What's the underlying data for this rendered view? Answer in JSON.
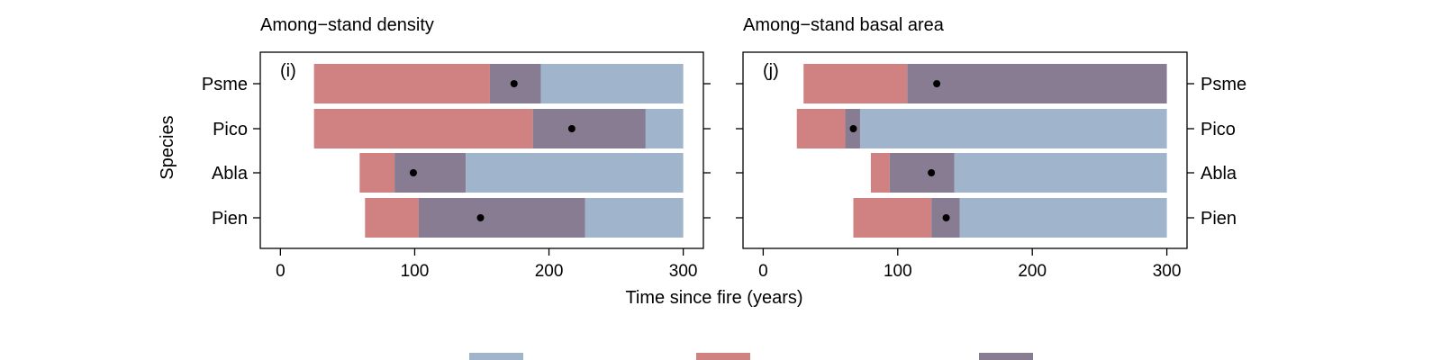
{
  "figure": {
    "shared_xlabel": "Time since fire (years)",
    "ylabel": "Species",
    "colors": {
      "blue": "#a0b4cc",
      "red": "#d08282",
      "purple": "#887c92",
      "dot": "#000000",
      "axis": "#000000"
    }
  },
  "chart_data": [
    {
      "type": "bar",
      "subtype": "horizontal-stacked-range",
      "title": "Among−stand density",
      "panel_label": "(i)",
      "xlabel": "Time since fire (years)",
      "ylabel": "Species",
      "categories": [
        "Psme",
        "Pico",
        "Abla",
        "Pien"
      ],
      "xlim": [
        -15,
        315
      ],
      "xticks": [
        0,
        100,
        200,
        300
      ],
      "ytick_side": "left",
      "grid": false,
      "segments": [
        {
          "category": "Psme",
          "red": [
            25,
            156
          ],
          "purple": [
            156,
            194
          ],
          "blue": [
            194,
            300
          ],
          "dot": 174
        },
        {
          "category": "Pico",
          "red": [
            25,
            188
          ],
          "purple": [
            188,
            272
          ],
          "blue": [
            272,
            300
          ],
          "dot": 217
        },
        {
          "category": "Abla",
          "red": [
            59,
            85
          ],
          "purple": [
            85,
            138
          ],
          "blue": [
            138,
            300
          ],
          "dot": 99
        },
        {
          "category": "Pien",
          "red": [
            63,
            103
          ],
          "purple": [
            103,
            227
          ],
          "blue": [
            227,
            300
          ],
          "dot": 149
        }
      ]
    },
    {
      "type": "bar",
      "subtype": "horizontal-stacked-range",
      "title": "Among−stand basal area",
      "panel_label": "(j)",
      "xlabel": "Time since fire (years)",
      "ylabel": "",
      "categories": [
        "Psme",
        "Pico",
        "Abla",
        "Pien"
      ],
      "xlim": [
        -15,
        315
      ],
      "xticks": [
        0,
        100,
        200,
        300
      ],
      "ytick_side": "right",
      "grid": false,
      "segments": [
        {
          "category": "Psme",
          "red": [
            30,
            107
          ],
          "purple": [
            107,
            300
          ],
          "blue": [
            300,
            300
          ],
          "dot": 129
        },
        {
          "category": "Pico",
          "red": [
            25,
            61
          ],
          "purple": [
            61,
            72
          ],
          "blue": [
            72,
            300
          ],
          "dot": 67
        },
        {
          "category": "Abla",
          "red": [
            80,
            94
          ],
          "purple": [
            94,
            142
          ],
          "blue": [
            142,
            300
          ],
          "dot": 125
        },
        {
          "category": "Pien",
          "red": [
            67,
            125
          ],
          "purple": [
            125,
            146
          ],
          "blue": [
            146,
            300
          ],
          "dot": 136
        }
      ]
    }
  ],
  "legend": {
    "placement": "bottom",
    "items": [
      {
        "color": "#a0b4cc",
        "label": ""
      },
      {
        "color": "#d08282",
        "label": ""
      },
      {
        "color": "#887c92",
        "label": ""
      }
    ]
  }
}
